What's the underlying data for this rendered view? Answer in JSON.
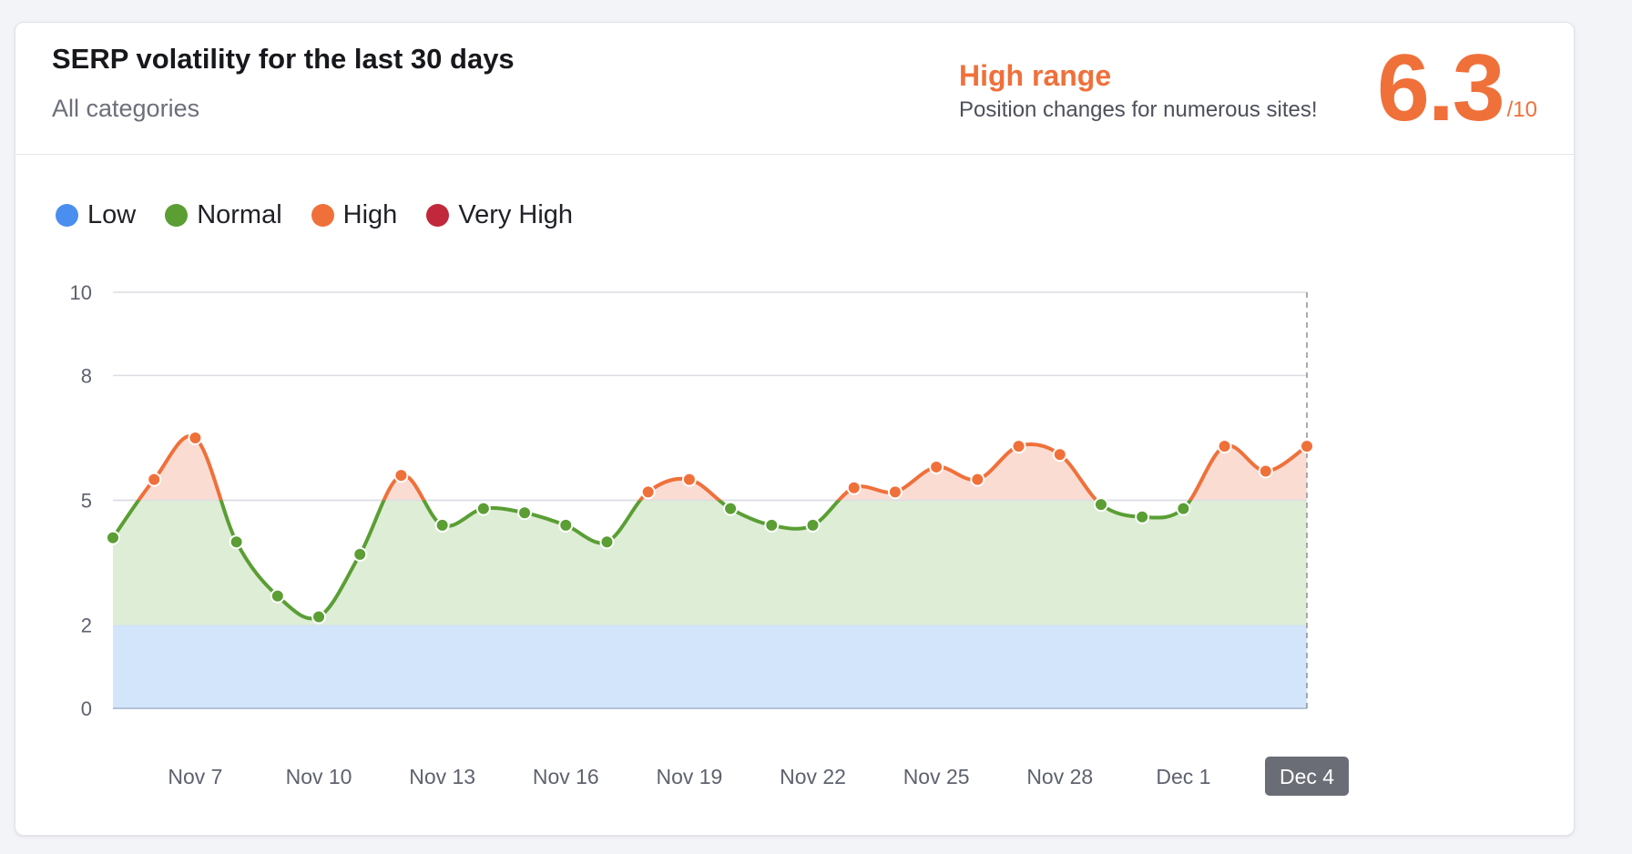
{
  "header": {
    "title": "SERP volatility for the last 30 days",
    "subtitle": "All categories",
    "range_label": "High range",
    "range_description": "Position changes for numerous sites!",
    "score": "6.3",
    "score_max": "/10"
  },
  "colors": {
    "low": "#4a8ff0",
    "normal": "#5a9e34",
    "high": "#f0703a",
    "very_high": "#c2283b",
    "low_band": "#d3e5fa",
    "normal_band": "#deedd5",
    "high_band": "#fadcd3"
  },
  "legend": [
    {
      "label": "Low",
      "color": "#4a8ff0"
    },
    {
      "label": "Normal",
      "color": "#5a9e34"
    },
    {
      "label": "High",
      "color": "#f0703a"
    },
    {
      "label": "Very High",
      "color": "#c2283b"
    }
  ],
  "chart_data": {
    "type": "area",
    "title": "SERP volatility for the last 30 days",
    "xlabel": "",
    "ylabel": "",
    "ylim": [
      0,
      10
    ],
    "y_ticks": [
      0,
      2,
      5,
      8,
      10
    ],
    "x_tick_labels": [
      "Nov 7",
      "Nov 10",
      "Nov 13",
      "Nov 16",
      "Nov 19",
      "Nov 22",
      "Nov 25",
      "Nov 28",
      "Dec 1",
      "Dec 4"
    ],
    "x_tick_days": [
      7,
      10,
      13,
      16,
      19,
      22,
      25,
      28,
      31,
      34
    ],
    "active_x_label": "Dec 4",
    "bands": [
      {
        "name": "Low",
        "from": 0,
        "to": 2
      },
      {
        "name": "Normal",
        "from": 2,
        "to": 5
      },
      {
        "name": "High",
        "from": 5,
        "to": 8
      },
      {
        "name": "Very High",
        "from": 8,
        "to": 10
      }
    ],
    "series": [
      {
        "x": [
          "Nov 5",
          "Nov 6",
          "Nov 7",
          "Nov 8",
          "Nov 9",
          "Nov 10",
          "Nov 11",
          "Nov 12",
          "Nov 13",
          "Nov 14",
          "Nov 15",
          "Nov 16",
          "Nov 17",
          "Nov 18",
          "Nov 19",
          "Nov 20",
          "Nov 21",
          "Nov 22",
          "Nov 23",
          "Nov 24",
          "Nov 25",
          "Nov 26",
          "Nov 27",
          "Nov 28",
          "Nov 29",
          "Nov 30",
          "Dec 1",
          "Dec 2",
          "Dec 3",
          "Dec 4"
        ],
        "values": [
          4.1,
          5.5,
          6.5,
          4.0,
          2.7,
          2.2,
          3.7,
          5.6,
          4.4,
          4.8,
          4.7,
          4.4,
          4.0,
          5.2,
          5.5,
          4.8,
          4.4,
          4.4,
          5.3,
          5.2,
          5.8,
          5.5,
          6.3,
          6.1,
          4.9,
          4.6,
          4.8,
          6.3,
          5.7,
          6.3
        ]
      }
    ]
  }
}
